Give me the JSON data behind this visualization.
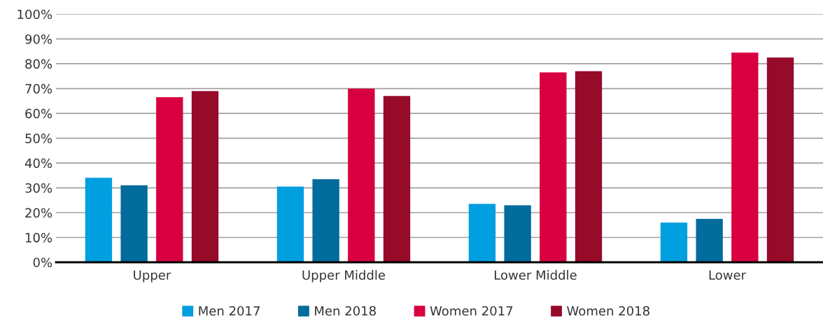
{
  "chart_data": {
    "type": "bar",
    "categories": [
      "Upper",
      "Upper Middle",
      "Lower Middle",
      "Lower"
    ],
    "series": [
      {
        "name": "Men 2017",
        "color": "#009fe0",
        "values": [
          34,
          30.5,
          23.5,
          16
        ]
      },
      {
        "name": "Men 2018",
        "color": "#026c9c",
        "values": [
          31,
          33.5,
          23,
          17.5
        ]
      },
      {
        "name": "Women 2017",
        "color": "#d80040",
        "values": [
          66.5,
          70,
          76.5,
          84.5
        ]
      },
      {
        "name": "Women 2018",
        "color": "#960a2a",
        "values": [
          69,
          67,
          77,
          82.5
        ]
      }
    ],
    "ylim": [
      0,
      100
    ],
    "yticks": [
      {
        "value": 0,
        "label": "0%"
      },
      {
        "value": 10,
        "label": "10%"
      },
      {
        "value": 20,
        "label": "20%"
      },
      {
        "value": 30,
        "label": "30%"
      },
      {
        "value": 40,
        "label": "40%"
      },
      {
        "value": 50,
        "label": "50%"
      },
      {
        "value": 60,
        "label": "60%"
      },
      {
        "value": 70,
        "label": "70%"
      },
      {
        "value": 80,
        "label": "80%"
      },
      {
        "value": 90,
        "label": "90%"
      },
      {
        "value": 100,
        "label": "100%"
      }
    ],
    "grid": "y",
    "legend": "bottom"
  }
}
